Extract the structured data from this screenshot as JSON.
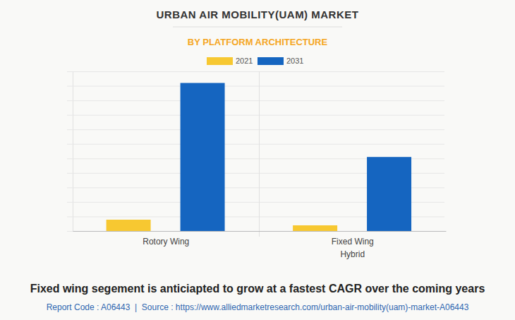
{
  "chart_data": {
    "type": "bar",
    "title": "URBAN AIR MOBILITY(UAM) MARKET",
    "subtitle": "BY PLATFORM ARCHITECTURE",
    "categories": [
      "Rotory Wing",
      "Fixed Wing Hybrid"
    ],
    "series": [
      {
        "name": "2021",
        "color": "#f7c831",
        "values": [
          0.78,
          0.39
        ]
      },
      {
        "name": "2031",
        "color": "#1565c0",
        "values": [
          10.2,
          5.1
        ]
      }
    ],
    "ylim": [
      0,
      11
    ],
    "yticks": [
      0,
      1,
      2,
      3,
      4,
      5,
      6,
      7,
      8,
      9,
      10,
      11
    ],
    "grid": true,
    "legend": "top",
    "tick_labels": "x",
    "annotations": [
      "Fixed wing segement is anticiapted to grow at a fastest CAGR over the coming years",
      "Report Code : A06443  |  Source : https://www.alliedmarketresearch.com/urban-air-mobility(uam)-market-A06443"
    ]
  }
}
